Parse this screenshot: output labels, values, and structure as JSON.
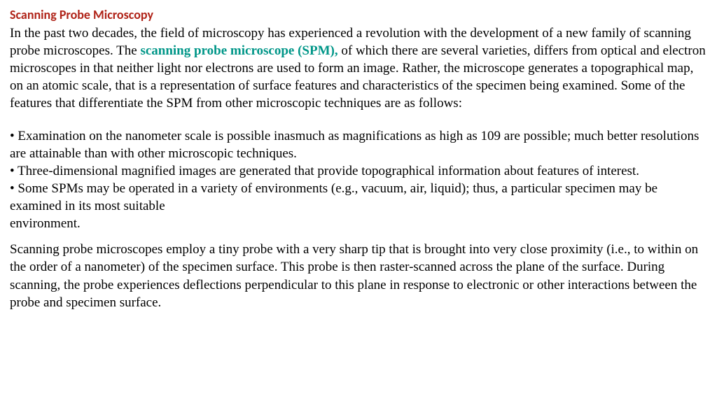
{
  "colors": {
    "title": "#b02318",
    "body": "#000000",
    "highlight": "#009688",
    "background": "#ffffff"
  },
  "typography": {
    "title_font_family": "Calibri, sans-serif",
    "title_font_size_pt": 13,
    "title_font_weight": 700,
    "body_font_family": "Times New Roman, serif",
    "body_font_size_pt": 14,
    "line_height": 1.32
  },
  "title": "Scanning Probe Microscopy",
  "intro": {
    "pre": "In the past two decades, the field of microscopy has experienced a revolution with the development of a new family of scanning probe microscopes. The ",
    "highlight": "scanning probe microscope (SPM),",
    "post": " of which there are several varieties, differs from optical and electron microscopes in that neither light nor electrons are used to form an image. Rather, the microscope generates a topographical map, on an atomic scale, that is a representation of surface features and characteristics of the specimen being examined. Some of the",
    "line2": "features that differentiate the SPM from other microscopic techniques are as follows:"
  },
  "bullets": {
    "b1": "• Examination on the nanometer scale is possible inasmuch as magnifications as high as 109 are possible; much better resolutions are attainable than with other microscopic techniques.",
    "b2": "• Three-dimensional magnified images are generated that provide topographical information about features of interest.",
    "b3": "• Some SPMs may be operated in a variety of environments (e.g., vacuum, air, liquid); thus, a particular specimen may be examined in its most suitable",
    "b3_cont": "environment."
  },
  "closing": "Scanning probe microscopes employ a tiny probe with a very sharp tip that is brought into very close proximity (i.e., to within on the order of a nanometer) of the specimen surface. This probe is then raster-scanned across the plane of the surface. During scanning, the probe experiences deflections perpendicular to this plane in response to electronic or other interactions between the probe and specimen surface."
}
